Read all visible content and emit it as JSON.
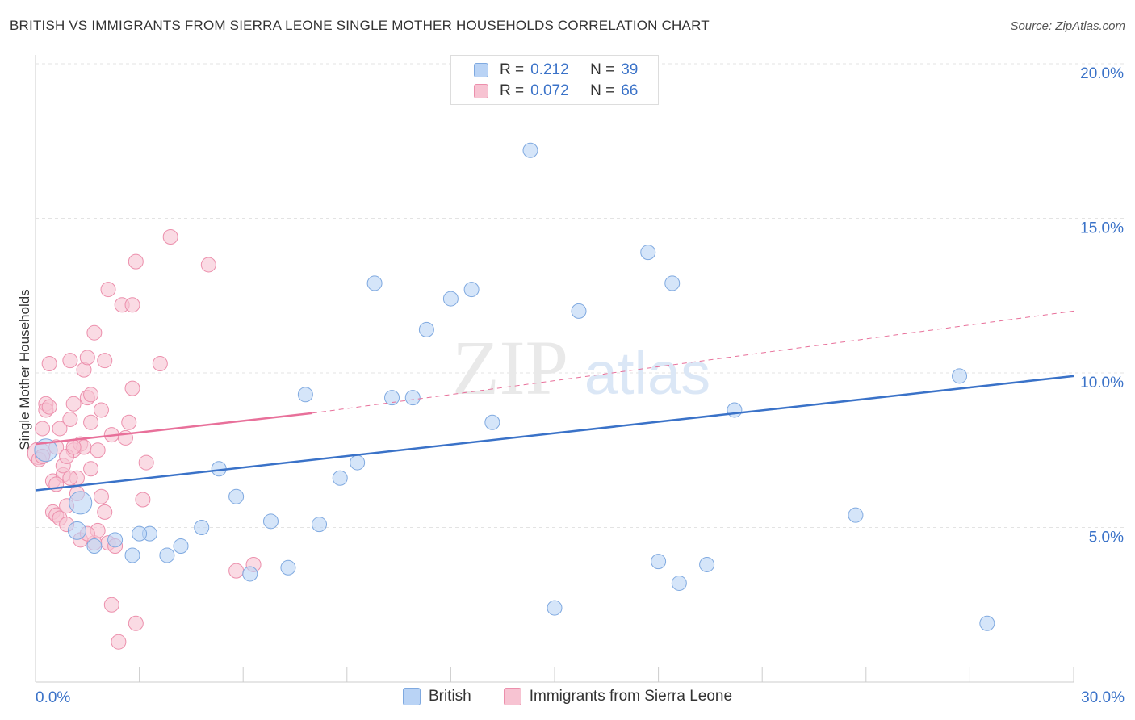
{
  "title": "BRITISH VS IMMIGRANTS FROM SIERRA LEONE SINGLE MOTHER HOUSEHOLDS CORRELATION CHART",
  "source": "Source: ZipAtlas.com",
  "watermark": {
    "zip": "ZIP",
    "atlas": "atlas"
  },
  "legend_top": {
    "rows": [
      {
        "r_label": "R = ",
        "r_value": "0.212",
        "n_label": "N = ",
        "n_value": "39"
      },
      {
        "r_label": "R = ",
        "r_value": "0.072",
        "n_label": "N = ",
        "n_value": "66"
      }
    ]
  },
  "colors": {
    "british_fill": "#b9d3f5",
    "british_stroke": "#7fa9e0",
    "british_line": "#3a72c8",
    "sl_fill": "#f7c3d2",
    "sl_stroke": "#ec8fac",
    "sl_line": "#e8709a",
    "tick_text": "#3a72c8",
    "grid": "#e3e3e3"
  },
  "chart_data": {
    "type": "scatter",
    "title": "BRITISH VS IMMIGRANTS FROM SIERRA LEONE SINGLE MOTHER HOUSEHOLDS CORRELATION CHART",
    "xlabel": "",
    "ylabel": "Single Mother Households",
    "xlim": [
      0,
      30
    ],
    "ylim": [
      0,
      20
    ],
    "x_tick_labels": [
      "0.0%",
      "30.0%"
    ],
    "y_ticks": [
      5,
      10,
      15,
      20
    ],
    "y_tick_labels": [
      "5.0%",
      "10.0%",
      "15.0%",
      "20.0%"
    ],
    "grid": true,
    "legend_position": "bottom",
    "series": [
      {
        "name": "British",
        "r": 0.212,
        "n": 39,
        "trend": {
          "x": [
            0,
            30
          ],
          "y": [
            6.2,
            9.9
          ],
          "dashed_to": null
        },
        "points": [
          [
            0.3,
            7.5,
            "big"
          ],
          [
            1.3,
            5.8,
            "big"
          ],
          [
            1.2,
            4.9,
            "mid"
          ],
          [
            1.7,
            4.4
          ],
          [
            2.3,
            4.6
          ],
          [
            2.8,
            4.1
          ],
          [
            3.3,
            4.8
          ],
          [
            3.8,
            4.1
          ],
          [
            4.2,
            4.4
          ],
          [
            4.8,
            5.0
          ],
          [
            5.3,
            6.9
          ],
          [
            5.8,
            6.0
          ],
          [
            6.2,
            3.5
          ],
          [
            6.8,
            5.2
          ],
          [
            7.3,
            3.7
          ],
          [
            7.8,
            9.3
          ],
          [
            8.2,
            5.1
          ],
          [
            8.8,
            6.6
          ],
          [
            9.3,
            7.1
          ],
          [
            9.8,
            12.9
          ],
          [
            10.3,
            9.2
          ],
          [
            10.9,
            9.2
          ],
          [
            11.3,
            11.4
          ],
          [
            12.0,
            12.4
          ],
          [
            12.6,
            12.7
          ],
          [
            13.2,
            8.4
          ],
          [
            14.3,
            17.2
          ],
          [
            15.0,
            2.4
          ],
          [
            15.7,
            12.0
          ],
          [
            17.7,
            13.9
          ],
          [
            18.0,
            3.9
          ],
          [
            18.4,
            12.9
          ],
          [
            18.6,
            3.2
          ],
          [
            19.4,
            3.8
          ],
          [
            20.2,
            8.8
          ],
          [
            23.7,
            5.4
          ],
          [
            26.7,
            9.9
          ],
          [
            27.5,
            1.9
          ],
          [
            3.0,
            4.8
          ]
        ]
      },
      {
        "name": "Immigrants from Sierra Leone",
        "r": 0.072,
        "n": 66,
        "trend": {
          "x": [
            0,
            8
          ],
          "y": [
            7.7,
            8.7
          ],
          "dashed_x": [
            8,
            30
          ],
          "dashed_y": [
            8.7,
            12.0
          ]
        },
        "points": [
          [
            0.1,
            7.4,
            "big"
          ],
          [
            0.1,
            7.2
          ],
          [
            0.2,
            7.3
          ],
          [
            0.2,
            8.2
          ],
          [
            0.3,
            9.0
          ],
          [
            0.3,
            8.8
          ],
          [
            0.4,
            8.9
          ],
          [
            0.4,
            10.3
          ],
          [
            0.5,
            5.5
          ],
          [
            0.5,
            6.5
          ],
          [
            0.6,
            5.4
          ],
          [
            0.6,
            7.6
          ],
          [
            0.7,
            8.2
          ],
          [
            0.7,
            5.3
          ],
          [
            0.8,
            6.7
          ],
          [
            0.8,
            7.0
          ],
          [
            0.9,
            5.1
          ],
          [
            0.9,
            5.7
          ],
          [
            1.0,
            8.5
          ],
          [
            1.0,
            10.4
          ],
          [
            1.1,
            7.5
          ],
          [
            1.1,
            9.0
          ],
          [
            1.2,
            6.6
          ],
          [
            1.2,
            6.1
          ],
          [
            1.3,
            7.7
          ],
          [
            1.3,
            4.6
          ],
          [
            1.4,
            10.1
          ],
          [
            1.4,
            7.6
          ],
          [
            1.5,
            10.5
          ],
          [
            1.5,
            9.2
          ],
          [
            1.6,
            9.3
          ],
          [
            1.6,
            8.4
          ],
          [
            1.7,
            11.3
          ],
          [
            1.7,
            4.5
          ],
          [
            1.8,
            4.9
          ],
          [
            1.8,
            7.5
          ],
          [
            1.9,
            6.0
          ],
          [
            1.9,
            8.8
          ],
          [
            2.0,
            10.4
          ],
          [
            2.0,
            5.5
          ],
          [
            2.1,
            12.7
          ],
          [
            2.2,
            2.5
          ],
          [
            2.2,
            8.0
          ],
          [
            2.4,
            1.3
          ],
          [
            2.5,
            12.2
          ],
          [
            2.6,
            7.9
          ],
          [
            2.7,
            8.4
          ],
          [
            2.8,
            12.2
          ],
          [
            2.8,
            9.5
          ],
          [
            2.9,
            13.6
          ],
          [
            2.9,
            1.9
          ],
          [
            3.1,
            5.9
          ],
          [
            3.2,
            7.1
          ],
          [
            3.6,
            10.3
          ],
          [
            3.9,
            14.4
          ],
          [
            5.0,
            13.5
          ],
          [
            5.8,
            3.6
          ],
          [
            6.3,
            3.8
          ],
          [
            1.6,
            6.9
          ],
          [
            0.6,
            6.4
          ],
          [
            1.0,
            6.6
          ],
          [
            2.1,
            4.5
          ],
          [
            1.5,
            4.8
          ],
          [
            0.9,
            7.3
          ],
          [
            2.3,
            4.4
          ],
          [
            1.1,
            7.6
          ]
        ]
      }
    ]
  }
}
